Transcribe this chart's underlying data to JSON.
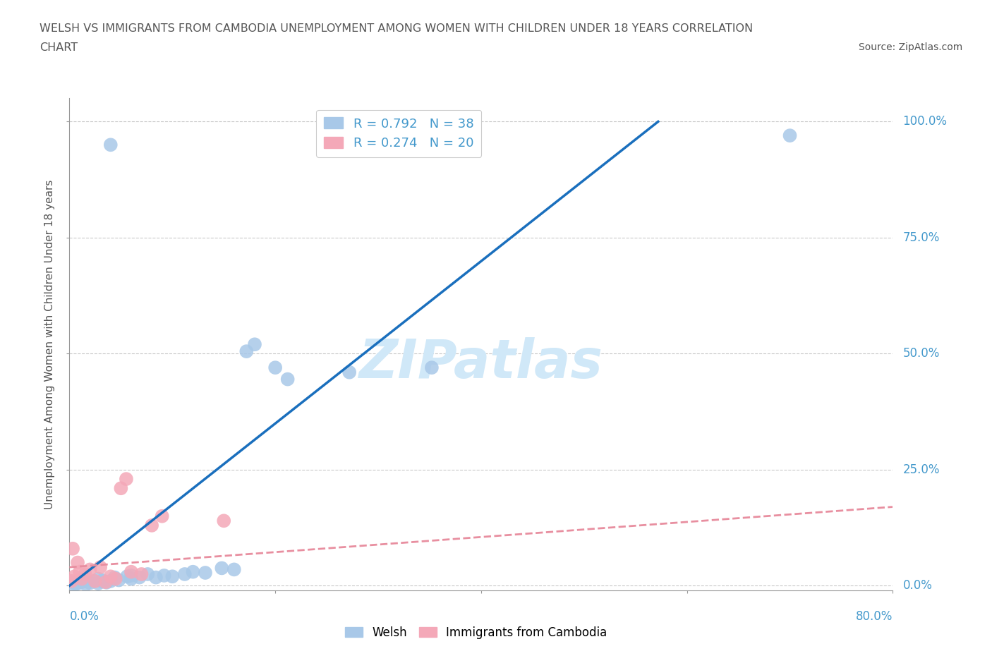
{
  "title_line1": "WELSH VS IMMIGRANTS FROM CAMBODIA UNEMPLOYMENT AMONG WOMEN WITH CHILDREN UNDER 18 YEARS CORRELATION",
  "title_line2": "CHART",
  "source": "Source: ZipAtlas.com",
  "ylabel": "Unemployment Among Women with Children Under 18 years",
  "ytick_labels": [
    "0.0%",
    "25.0%",
    "50.0%",
    "75.0%",
    "100.0%"
  ],
  "ytick_values": [
    0,
    25,
    50,
    75,
    100
  ],
  "xlim": [
    0,
    20
  ],
  "ylim": [
    -1,
    105
  ],
  "display_xlim_left": "0.0%",
  "display_xlim_right": "80.0%",
  "welsh_color": "#a8c8e8",
  "cambodia_color": "#f4a8b8",
  "welsh_line_color": "#1a6fbd",
  "cambodia_line_color": "#e88fa0",
  "welsh_R": 0.792,
  "welsh_N": 38,
  "cambodia_R": 0.274,
  "cambodia_N": 20,
  "watermark": "ZIPatlas",
  "watermark_color": "#d0e8f8",
  "legend_label_welsh": "Welsh",
  "legend_label_cambodia": "Immigrants from Cambodia",
  "welsh_points": [
    [
      0.1,
      0.3
    ],
    [
      0.2,
      0.5
    ],
    [
      0.3,
      0.8
    ],
    [
      0.4,
      0.3
    ],
    [
      0.5,
      0.6
    ],
    [
      0.6,
      1.0
    ],
    [
      0.7,
      0.5
    ],
    [
      0.8,
      1.2
    ],
    [
      0.9,
      0.7
    ],
    [
      1.0,
      1.0
    ],
    [
      1.1,
      1.8
    ],
    [
      1.2,
      1.2
    ],
    [
      1.4,
      2.0
    ],
    [
      1.5,
      1.5
    ],
    [
      1.7,
      1.8
    ],
    [
      1.9,
      2.5
    ],
    [
      2.1,
      1.8
    ],
    [
      2.3,
      2.2
    ],
    [
      2.5,
      2.0
    ],
    [
      2.8,
      2.5
    ],
    [
      3.0,
      3.0
    ],
    [
      3.3,
      2.8
    ],
    [
      3.7,
      3.8
    ],
    [
      4.0,
      3.5
    ],
    [
      4.3,
      50.5
    ],
    [
      4.5,
      52.0
    ],
    [
      5.0,
      47.0
    ],
    [
      5.3,
      44.5
    ],
    [
      6.8,
      46.0
    ],
    [
      8.8,
      47.0
    ],
    [
      1.0,
      95.0
    ],
    [
      17.5,
      97.0
    ],
    [
      0.08,
      0.8
    ],
    [
      0.15,
      0.4
    ],
    [
      0.28,
      1.2
    ],
    [
      0.7,
      1.5
    ],
    [
      0.8,
      0.9
    ],
    [
      1.5,
      2.2
    ]
  ],
  "cambodia_points": [
    [
      0.08,
      8.0
    ],
    [
      0.12,
      2.0
    ],
    [
      0.2,
      5.0
    ],
    [
      0.25,
      3.0
    ],
    [
      0.3,
      1.5
    ],
    [
      0.38,
      2.5
    ],
    [
      0.5,
      3.5
    ],
    [
      0.62,
      1.0
    ],
    [
      0.75,
      4.0
    ],
    [
      0.88,
      0.8
    ],
    [
      1.0,
      2.0
    ],
    [
      1.12,
      1.5
    ],
    [
      1.25,
      21.0
    ],
    [
      1.38,
      23.0
    ],
    [
      1.5,
      3.0
    ],
    [
      1.75,
      2.5
    ],
    [
      2.0,
      13.0
    ],
    [
      2.25,
      15.0
    ],
    [
      3.75,
      14.0
    ],
    [
      0.05,
      1.0
    ]
  ],
  "welsh_line_x": [
    0,
    14.3
  ],
  "welsh_line_y": [
    0,
    100
  ],
  "cambodia_line_x": [
    0,
    20
  ],
  "cambodia_line_y": [
    4,
    17
  ],
  "background_color": "#ffffff",
  "grid_color": "#bbbbbb",
  "title_color": "#555555",
  "axis_color": "#4499cc",
  "xtick_positions": [
    0,
    5,
    10,
    15,
    20
  ]
}
